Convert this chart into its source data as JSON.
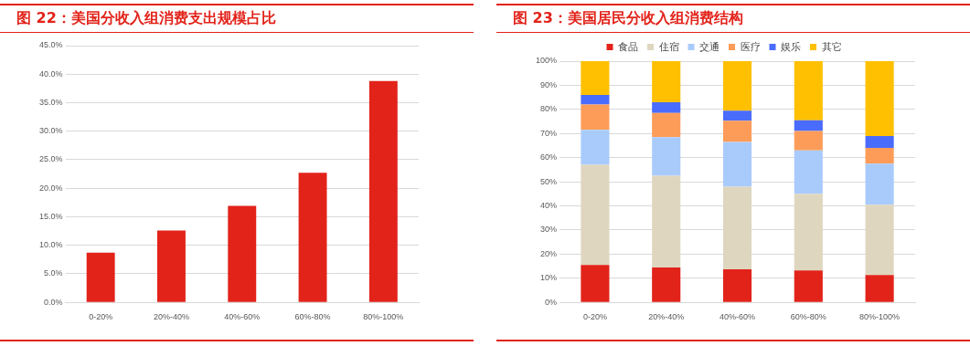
{
  "chart_data": [
    {
      "type": "bar",
      "title": "图 22：美国分收入组消费支出规模占比",
      "categories": [
        "0-20%",
        "20%-40%",
        "40%-60%",
        "60%-80%",
        "80%-100%"
      ],
      "values": [
        8.7,
        12.6,
        16.9,
        22.7,
        38.8
      ],
      "color": "#e2231a",
      "ylim": [
        0,
        45
      ],
      "yticks": [
        {
          "value": 0,
          "label": "0.0%"
        },
        {
          "value": 5,
          "label": "5.0%"
        },
        {
          "value": 10,
          "label": "10.0%"
        },
        {
          "value": 15,
          "label": "15.0%"
        },
        {
          "value": 20,
          "label": "20.0%"
        },
        {
          "value": 25,
          "label": "25.0%"
        },
        {
          "value": 30,
          "label": "30.0%"
        },
        {
          "value": 35,
          "label": "35.0%"
        },
        {
          "value": 40,
          "label": "40.0%"
        },
        {
          "value": 45,
          "label": "45.0%"
        }
      ],
      "grid": "y"
    },
    {
      "type": "bar",
      "title": "图 23：美国居民分收入组消费结构",
      "categories": [
        "0-20%",
        "20%-40%",
        "40%-60%",
        "60%-80%",
        "80%-100%"
      ],
      "stacked": true,
      "series": [
        {
          "name": "食品",
          "color": "#e2231a",
          "values": [
            15.5,
            14.5,
            13.7,
            13.2,
            11.3
          ]
        },
        {
          "name": "住宿",
          "color": "#ded6bf",
          "values": [
            41.5,
            38,
            34.3,
            31.8,
            29.2
          ]
        },
        {
          "name": "交通",
          "color": "#a9cbfc",
          "values": [
            14.5,
            16,
            18.5,
            18,
            17
          ]
        },
        {
          "name": "医疗",
          "color": "#fd9c58",
          "values": [
            10.5,
            10,
            8.8,
            8,
            6.5
          ]
        },
        {
          "name": "娱乐",
          "color": "#4a6cfc",
          "values": [
            4,
            4.5,
            4.2,
            4.5,
            5
          ]
        },
        {
          "name": "其它",
          "color": "#fec000",
          "values": [
            14,
            17,
            20.5,
            24.5,
            31
          ]
        }
      ],
      "ylim": [
        0,
        100
      ],
      "yticks": [
        {
          "value": 0,
          "label": "0%"
        },
        {
          "value": 10,
          "label": "10%"
        },
        {
          "value": 20,
          "label": "20%"
        },
        {
          "value": 30,
          "label": "30%"
        },
        {
          "value": 40,
          "label": "40%"
        },
        {
          "value": 50,
          "label": "50%"
        },
        {
          "value": 60,
          "label": "60%"
        },
        {
          "value": 70,
          "label": "70%"
        },
        {
          "value": 80,
          "label": "80%"
        },
        {
          "value": 90,
          "label": "90%"
        },
        {
          "value": 100,
          "label": "100%"
        }
      ],
      "grid": "y",
      "legend": "top"
    }
  ]
}
